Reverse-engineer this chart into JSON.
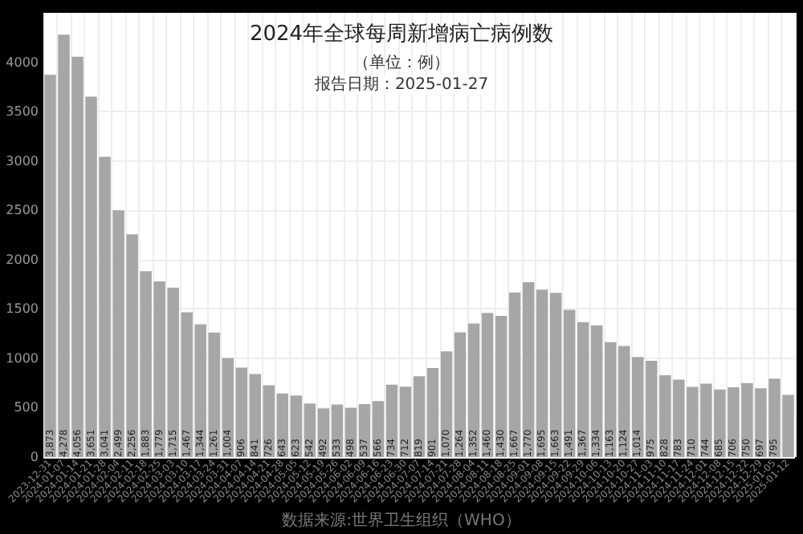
{
  "chart_data": {
    "type": "bar",
    "title": "2024年全球每周新增病亡病例数",
    "subtitle": "（单位：例）",
    "annotations": [
      "报告日期：2025-01-27",
      "数据来源:世界卫生组织（WHO）"
    ],
    "categories": [
      "2023-12-31",
      "2024-01-07",
      "2024-01-14",
      "2024-01-21",
      "2024-01-28",
      "2024-02-04",
      "2024-02-11",
      "2024-02-18",
      "2024-02-25",
      "2024-03-03",
      "2024-03-10",
      "2024-03-17",
      "2024-03-24",
      "2024-03-31",
      "2024-04-07",
      "2024-04-14",
      "2024-04-21",
      "2024-04-28",
      "2024-05-05",
      "2024-05-12",
      "2024-05-19",
      "2024-05-26",
      "2024-06-02",
      "2024-06-09",
      "2024-06-16",
      "2024-06-23",
      "2024-06-30",
      "2024-07-07",
      "2024-07-14",
      "2024-07-21",
      "2024-07-28",
      "2024-08-04",
      "2024-08-11",
      "2024-08-18",
      "2024-08-25",
      "2024-09-01",
      "2024-09-08",
      "2024-09-15",
      "2024-09-22",
      "2024-09-29",
      "2024-10-06",
      "2024-10-13",
      "2024-10-20",
      "2024-10-27",
      "2024-11-03",
      "2024-11-10",
      "2024-11-17",
      "2024-11-24",
      "2024-12-01",
      "2024-12-08",
      "2024-12-15",
      "2024-12-22",
      "2024-12-29",
      "2025-01-05",
      "2025-01-12"
    ],
    "values": [
      3873,
      4278,
      4056,
      3651,
      3041,
      2499,
      2256,
      1883,
      1779,
      1715,
      1467,
      1344,
      1261,
      1004,
      906,
      841,
      726,
      643,
      623,
      542,
      492,
      533,
      498,
      537,
      566,
      734,
      712,
      819,
      901,
      1070,
      1264,
      1352,
      1460,
      1430,
      1667,
      1770,
      1695,
      1663,
      1491,
      1367,
      1334,
      1163,
      1124,
      1014,
      975,
      828,
      783,
      710,
      744,
      685,
      706,
      750,
      697,
      795,
      630
    ],
    "value_labels": [
      "3,873",
      "4,278",
      "4,056",
      "3,651",
      "3,041",
      "2,499",
      "2,256",
      "1,883",
      "1,779",
      "1,715",
      "1,467",
      "1,344",
      "1,261",
      "1,004",
      "906",
      "841",
      "726",
      "643",
      "623",
      "542",
      "492",
      "533",
      "498",
      "537",
      "566",
      "734",
      "712",
      "819",
      "901",
      "1,070",
      "1,264",
      "1,352",
      "1,460",
      "1,430",
      "1,667",
      "1,770",
      "1,695",
      "1,663",
      "1,491",
      "1,367",
      "1,334",
      "1,163",
      "1,124",
      "1,014",
      "975",
      "828",
      "783",
      "710",
      "744",
      "685",
      "706",
      "750",
      "697",
      "795",
      null
    ],
    "color": "#a6a6a6",
    "ylim": [
      0,
      4500
    ],
    "yticks": [
      0,
      500,
      1000,
      1500,
      2000,
      2500,
      3000,
      3500,
      4000
    ],
    "grid": true
  }
}
